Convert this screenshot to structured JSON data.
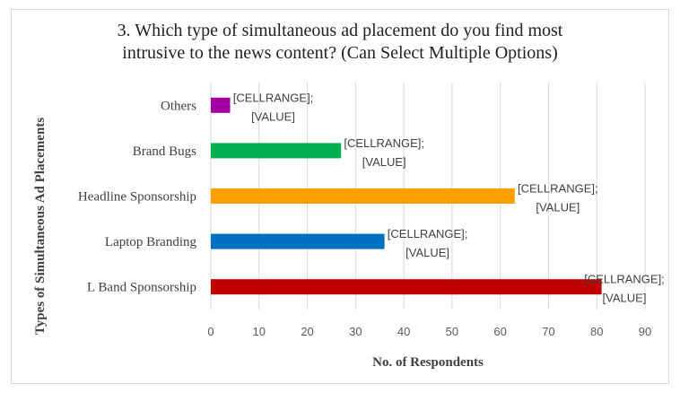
{
  "chart_data": {
    "type": "bar",
    "orientation": "horizontal",
    "title_lines": [
      "3. Which type of simultaneous ad placement do you find most",
      "intrusive to the news content? (Can Select Multiple Options)"
    ],
    "categories": [
      "L Band Sponsorship",
      "Laptop Branding",
      "Headline Sponsorship",
      "Brand Bugs",
      "Others"
    ],
    "values": [
      81,
      36,
      63,
      27,
      4
    ],
    "colors": [
      "#c00000",
      "#0070c0",
      "#ffa000",
      "#00b050",
      "#a000a0"
    ],
    "data_labels": [
      [
        "[CELLRANGE];",
        "[VALUE]"
      ],
      [
        "[CELLRANGE];",
        "[VALUE]"
      ],
      [
        "[CELLRANGE];",
        "[VALUE]"
      ],
      [
        "[CELLRANGE];",
        "[VALUE]"
      ],
      [
        "[CELLRANGE];",
        "[VALUE]"
      ]
    ],
    "xlim": [
      0,
      90
    ],
    "xticks": [
      0,
      10,
      20,
      30,
      40,
      50,
      60,
      70,
      80,
      90
    ],
    "xlabel": "No. of Respondents",
    "ylabel": "Types of Simultaneous Ad Placements",
    "grid": "vertical",
    "legend": "none"
  }
}
